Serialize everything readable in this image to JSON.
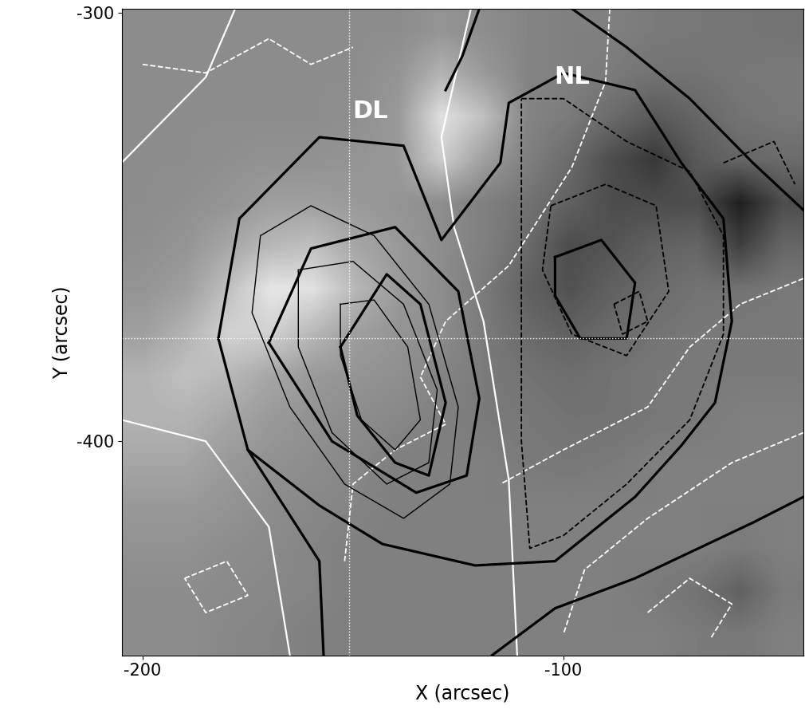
{
  "chart_data": {
    "type": "image",
    "x_label": "X (arcsec)",
    "y_label": "Y (arcsec)",
    "xlim": [
      -205,
      -43
    ],
    "ylim": [
      -450,
      -299
    ],
    "xticks": [
      -200,
      -100
    ],
    "yticks": [
      -300,
      -400
    ],
    "value_range": [
      0,
      1
    ],
    "cells": [
      [
        0.55,
        0.55,
        0.55,
        0.55,
        0.55,
        0.55,
        0.55,
        0.58,
        0.55,
        0.52,
        0.5,
        0.5,
        0.48,
        0.47,
        0.46,
        0.45
      ],
      [
        0.55,
        0.55,
        0.55,
        0.55,
        0.55,
        0.55,
        0.58,
        0.7,
        0.6,
        0.52,
        0.5,
        0.48,
        0.45,
        0.45,
        0.47,
        0.48
      ],
      [
        0.55,
        0.55,
        0.55,
        0.55,
        0.55,
        0.56,
        0.6,
        0.88,
        0.75,
        0.52,
        0.48,
        0.42,
        0.35,
        0.4,
        0.45,
        0.47
      ],
      [
        0.55,
        0.55,
        0.56,
        0.57,
        0.57,
        0.58,
        0.6,
        0.8,
        0.62,
        0.5,
        0.42,
        0.3,
        0.22,
        0.35,
        0.4,
        0.42
      ],
      [
        0.55,
        0.56,
        0.58,
        0.62,
        0.62,
        0.6,
        0.58,
        0.55,
        0.5,
        0.45,
        0.38,
        0.3,
        0.3,
        0.3,
        0.12,
        0.3
      ],
      [
        0.56,
        0.58,
        0.65,
        0.72,
        0.75,
        0.65,
        0.6,
        0.55,
        0.5,
        0.42,
        0.3,
        0.33,
        0.38,
        0.4,
        0.25,
        0.4
      ],
      [
        0.58,
        0.62,
        0.75,
        0.9,
        0.88,
        0.72,
        0.6,
        0.55,
        0.48,
        0.38,
        0.32,
        0.38,
        0.42,
        0.45,
        0.45,
        0.47
      ],
      [
        0.62,
        0.7,
        0.82,
        0.82,
        0.72,
        0.62,
        0.58,
        0.55,
        0.48,
        0.42,
        0.38,
        0.42,
        0.45,
        0.47,
        0.48,
        0.48
      ],
      [
        0.7,
        0.75,
        0.72,
        0.65,
        0.6,
        0.58,
        0.56,
        0.52,
        0.48,
        0.45,
        0.43,
        0.45,
        0.47,
        0.48,
        0.48,
        0.48
      ],
      [
        0.7,
        0.7,
        0.65,
        0.6,
        0.57,
        0.55,
        0.53,
        0.5,
        0.48,
        0.47,
        0.45,
        0.45,
        0.47,
        0.48,
        0.5,
        0.5
      ],
      [
        0.65,
        0.65,
        0.6,
        0.57,
        0.55,
        0.53,
        0.5,
        0.5,
        0.5,
        0.48,
        0.47,
        0.48,
        0.5,
        0.5,
        0.5,
        0.5
      ],
      [
        0.6,
        0.6,
        0.58,
        0.55,
        0.53,
        0.52,
        0.5,
        0.5,
        0.5,
        0.5,
        0.5,
        0.5,
        0.5,
        0.5,
        0.5,
        0.5
      ],
      [
        0.57,
        0.57,
        0.55,
        0.54,
        0.52,
        0.5,
        0.5,
        0.5,
        0.5,
        0.5,
        0.5,
        0.5,
        0.5,
        0.5,
        0.48,
        0.5
      ],
      [
        0.55,
        0.55,
        0.54,
        0.53,
        0.52,
        0.5,
        0.5,
        0.5,
        0.5,
        0.5,
        0.5,
        0.5,
        0.48,
        0.45,
        0.38,
        0.48
      ],
      [
        0.55,
        0.55,
        0.53,
        0.52,
        0.5,
        0.5,
        0.5,
        0.5,
        0.5,
        0.5,
        0.5,
        0.5,
        0.5,
        0.48,
        0.47,
        0.5
      ]
    ],
    "series": [
      {
        "color": "white",
        "line_style": "solid",
        "values": [
          [
            -122,
            -299
          ],
          [
            -129,
            -329
          ],
          [
            -126,
            -350
          ],
          [
            -119,
            -372
          ],
          [
            -113,
            -409
          ],
          [
            -111,
            -450
          ]
        ]
      },
      {
        "color": "white",
        "line_style": "solid",
        "values": [
          [
            -178,
            -299
          ],
          [
            -185,
            -315
          ],
          [
            -205,
            -335
          ]
        ]
      },
      {
        "color": "white",
        "line_style": "solid",
        "values": [
          [
            -205,
            -395
          ],
          [
            -185,
            -400
          ],
          [
            -170,
            -420
          ],
          [
            -165,
            -450
          ]
        ]
      },
      {
        "color": "white",
        "line_style": "dashed",
        "values": [
          [
            -89,
            -299
          ],
          [
            -90,
            -316
          ],
          [
            -98,
            -336
          ],
          [
            -113,
            -359
          ],
          [
            -128,
            -372
          ],
          [
            -134,
            -385
          ],
          [
            -128,
            -396
          ],
          [
            -140,
            -402
          ],
          [
            -150,
            -410
          ],
          [
            -152,
            -428
          ]
        ]
      },
      {
        "color": "white",
        "line_style": "dashed",
        "values": [
          [
            -200,
            -312
          ],
          [
            -185,
            -314
          ],
          [
            -170,
            -306
          ],
          [
            -160,
            -312
          ],
          [
            -150,
            -308
          ]
        ]
      },
      {
        "color": "white",
        "line_style": "dashed",
        "values": [
          [
            -43,
            -362
          ],
          [
            -58,
            -368
          ],
          [
            -70,
            -378
          ],
          [
            -80,
            -392
          ],
          [
            -100,
            -402
          ],
          [
            -115,
            -410
          ]
        ]
      },
      {
        "color": "white",
        "line_style": "dashed",
        "values": [
          [
            -43,
            -398
          ],
          [
            -60,
            -405
          ],
          [
            -80,
            -418
          ],
          [
            -95,
            -430
          ],
          [
            -100,
            -445
          ]
        ]
      },
      {
        "color": "white",
        "line_style": "dashed",
        "values": [
          [
            -190,
            -432
          ],
          [
            -180,
            -428
          ],
          [
            -175,
            -436
          ],
          [
            -185,
            -440
          ],
          [
            -190,
            -432
          ]
        ]
      },
      {
        "color": "white",
        "line_style": "dashed",
        "values": [
          [
            -80,
            -440
          ],
          [
            -70,
            -432
          ],
          [
            -60,
            -438
          ],
          [
            -65,
            -446
          ]
        ]
      },
      {
        "color": "black",
        "line_style": "thick",
        "values": [
          [
            -182,
            -376
          ],
          [
            -177,
            -348
          ],
          [
            -158,
            -329
          ],
          [
            -138,
            -331
          ],
          [
            -129,
            -353
          ],
          [
            -115,
            -335
          ],
          [
            -113,
            -321
          ],
          [
            -100,
            -314
          ],
          [
            -83,
            -318
          ],
          [
            -72,
            -335
          ],
          [
            -62,
            -348
          ],
          [
            -60,
            -372
          ],
          [
            -64,
            -391
          ],
          [
            -72,
            -401
          ],
          [
            -83,
            -413
          ],
          [
            -102,
            -428
          ],
          [
            -121,
            -429
          ],
          [
            -143,
            -424
          ],
          [
            -158,
            -415
          ],
          [
            -175,
            -402
          ],
          [
            -182,
            -376
          ]
        ]
      },
      {
        "color": "black",
        "line_style": "thick",
        "values": [
          [
            -120,
            -299
          ],
          [
            -124,
            -310
          ],
          [
            -128,
            -318
          ]
        ]
      },
      {
        "color": "black",
        "line_style": "thick",
        "values": [
          [
            -98,
            -299
          ],
          [
            -85,
            -308
          ],
          [
            -70,
            -320
          ],
          [
            -55,
            -335
          ],
          [
            -43,
            -346
          ]
        ]
      },
      {
        "color": "black",
        "line_style": "thick",
        "values": [
          [
            -117,
            -450
          ],
          [
            -102,
            -439
          ],
          [
            -83,
            -432
          ],
          [
            -55,
            -419
          ],
          [
            -43,
            -413
          ]
        ]
      },
      {
        "color": "black",
        "line_style": "thick",
        "values": [
          [
            -157,
            -450
          ],
          [
            -158,
            -428
          ],
          [
            -175,
            -402
          ]
        ]
      },
      {
        "color": "black",
        "line_style": "thick",
        "values": [
          [
            -170,
            -377
          ],
          [
            -160,
            -355
          ],
          [
            -140,
            -350
          ],
          [
            -125,
            -365
          ],
          [
            -120,
            -390
          ],
          [
            -123,
            -408
          ],
          [
            -135,
            -412
          ],
          [
            -155,
            -400
          ],
          [
            -170,
            -377
          ]
        ]
      },
      {
        "color": "black",
        "line_style": "thick",
        "values": [
          [
            -153,
            -378
          ],
          [
            -142,
            -361
          ],
          [
            -134,
            -368
          ],
          [
            -128,
            -391
          ],
          [
            -132,
            -408
          ],
          [
            -140,
            -405
          ],
          [
            -149,
            -394
          ],
          [
            -153,
            -378
          ]
        ]
      },
      {
        "color": "black",
        "line_style": "thick",
        "values": [
          [
            -102,
            -357
          ],
          [
            -91,
            -353
          ],
          [
            -83,
            -363
          ],
          [
            -85,
            -376
          ],
          [
            -96,
            -376
          ],
          [
            -102,
            -366
          ],
          [
            -102,
            -357
          ]
        ]
      },
      {
        "color": "black",
        "line_style": "thin",
        "values": [
          [
            -172,
            -352
          ],
          [
            -160,
            -345
          ],
          [
            -145,
            -352
          ],
          [
            -132,
            -368
          ],
          [
            -125,
            -392
          ],
          [
            -127,
            -410
          ],
          [
            -138,
            -418
          ],
          [
            -152,
            -410
          ],
          [
            -165,
            -392
          ],
          [
            -174,
            -370
          ],
          [
            -172,
            -352
          ]
        ]
      },
      {
        "color": "black",
        "line_style": "thin",
        "values": [
          [
            -163,
            -360
          ],
          [
            -150,
            -358
          ],
          [
            -138,
            -368
          ],
          [
            -130,
            -388
          ],
          [
            -132,
            -405
          ],
          [
            -142,
            -410
          ],
          [
            -155,
            -398
          ],
          [
            -163,
            -378
          ],
          [
            -163,
            -360
          ]
        ]
      },
      {
        "color": "black",
        "line_style": "thin",
        "values": [
          [
            -153,
            -368
          ],
          [
            -145,
            -367
          ],
          [
            -137,
            -378
          ],
          [
            -134,
            -395
          ],
          [
            -140,
            -402
          ],
          [
            -148,
            -395
          ],
          [
            -153,
            -380
          ],
          [
            -153,
            -368
          ]
        ]
      },
      {
        "color": "black",
        "line_style": "dashed",
        "values": [
          [
            -110,
            -320
          ],
          [
            -100,
            -320
          ],
          [
            -85,
            -330
          ],
          [
            -70,
            -337
          ],
          [
            -62,
            -352
          ],
          [
            -62,
            -375
          ],
          [
            -70,
            -395
          ],
          [
            -85,
            -410
          ],
          [
            -100,
            -422
          ],
          [
            -108,
            -425
          ],
          [
            -110,
            -400
          ],
          [
            -110,
            -360
          ],
          [
            -110,
            -320
          ]
        ]
      },
      {
        "color": "black",
        "line_style": "dashed",
        "values": [
          [
            -103,
            -345
          ],
          [
            -90,
            -340
          ],
          [
            -78,
            -345
          ],
          [
            -75,
            -365
          ],
          [
            -85,
            -380
          ],
          [
            -98,
            -375
          ],
          [
            -105,
            -360
          ],
          [
            -103,
            -345
          ]
        ]
      },
      {
        "color": "black",
        "line_style": "dashed",
        "values": [
          [
            -88,
            -368
          ],
          [
            -82,
            -365
          ],
          [
            -80,
            -372
          ],
          [
            -86,
            -375
          ],
          [
            -88,
            -368
          ]
        ]
      },
      {
        "color": "black",
        "line_style": "dashed",
        "values": [
          [
            -62,
            -335
          ],
          [
            -50,
            -330
          ],
          [
            -45,
            -340
          ]
        ]
      },
      {
        "color": "white",
        "line_style": "dotted",
        "values": [
          [
            -151,
            -299
          ],
          [
            -151,
            -450
          ]
        ]
      },
      {
        "color": "white",
        "line_style": "dotted",
        "values": [
          [
            -205,
            -376
          ],
          [
            -43,
            -376
          ]
        ]
      }
    ],
    "annotations": [
      {
        "text": "DL",
        "x": -146,
        "y": -323,
        "color": "white"
      },
      {
        "text": "NL",
        "x": -98,
        "y": -315,
        "color": "white"
      }
    ]
  }
}
